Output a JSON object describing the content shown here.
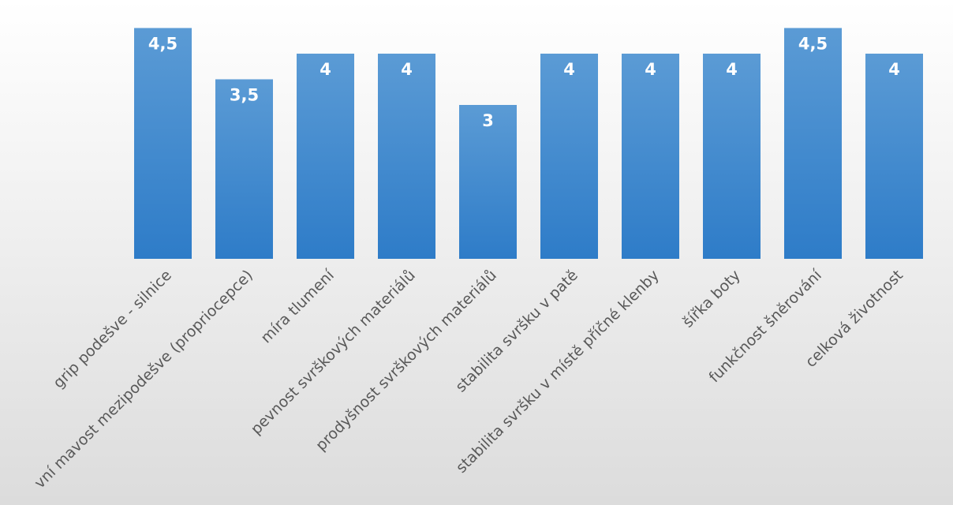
{
  "chart_data": {
    "type": "bar",
    "categories": [
      "grip podešve - silnice",
      "vní mavost mezipodešve (propriocepce)",
      "míra tlumení",
      "pevnost svrškových materiálů",
      "prodyšnost svrškových materiálů",
      "stabilita svršku v patě",
      "stabilita svršku v místě příčné klenby",
      "šířka boty",
      "funkčnost šněrování",
      "celková životnost"
    ],
    "values": [
      4.5,
      3.5,
      4,
      4,
      3,
      4,
      4,
      4,
      4.5,
      4
    ],
    "value_labels": [
      "4,5",
      "3,5",
      "4",
      "4",
      "3",
      "4",
      "4",
      "4",
      "4,5",
      "4"
    ],
    "ylim": [
      0,
      5
    ],
    "grid": false,
    "legend": "none",
    "title": "",
    "xlabel": "",
    "ylabel": "",
    "colors": {
      "bar_top": "#5b9bd5",
      "bar_bottom": "#2e7cc8",
      "label": "#ffffff",
      "tick": "#595959"
    }
  }
}
